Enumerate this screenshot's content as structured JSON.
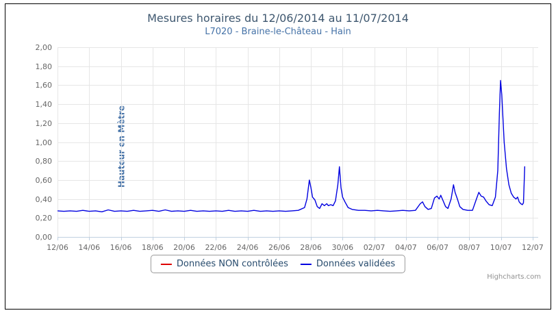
{
  "chart": {
    "title": "Mesures horaires du 12/06/2014 au 11/07/2014",
    "subtitle": "L7020 - Braine-le-Château - Hain",
    "credits": "Highcharts.com",
    "colors": {
      "title": "#3E576F",
      "subtitle": "#4572A7",
      "axis_label": "#666666",
      "legend_text": "#274B6D",
      "legend_border": "#999999",
      "frame_border": "#000000",
      "background": "#FFFFFF"
    }
  },
  "legend": {
    "items": [
      {
        "label": "Données NON contrôlées",
        "color": "#DD0000"
      },
      {
        "label": "Données validées",
        "color": "#0000E0"
      }
    ]
  },
  "chart_data": {
    "type": "line",
    "title": "Mesures horaires du 12/06/2014 au 11/07/2014",
    "subtitle": "L7020 - Braine-le-Château - Hain",
    "xlabel": "",
    "ylabel": "Hauteur en Mètre",
    "x_unit": "days since 12/06/2014 00:00",
    "xlim": [
      0,
      30.35
    ],
    "ylim": [
      0,
      2.0
    ],
    "grid": true,
    "grid_color": "#E6E6E6",
    "axis_color": "#C0D0E0",
    "legend_position": "bottom-center",
    "xticks": [
      {
        "v": 0,
        "label": "12/06"
      },
      {
        "v": 2,
        "label": "14/06"
      },
      {
        "v": 4,
        "label": "16/06"
      },
      {
        "v": 6,
        "label": "18/06"
      },
      {
        "v": 8,
        "label": "20/06"
      },
      {
        "v": 10,
        "label": "22/06"
      },
      {
        "v": 12,
        "label": "24/06"
      },
      {
        "v": 14,
        "label": "26/06"
      },
      {
        "v": 16,
        "label": "28/06"
      },
      {
        "v": 18,
        "label": "30/06"
      },
      {
        "v": 20,
        "label": "02/07"
      },
      {
        "v": 22,
        "label": "04/07"
      },
      {
        "v": 24,
        "label": "06/07"
      },
      {
        "v": 26,
        "label": "08/07"
      },
      {
        "v": 28,
        "label": "10/07"
      },
      {
        "v": 30,
        "label": "12/07"
      }
    ],
    "yticks": [
      {
        "v": 0.0,
        "label": "0,00"
      },
      {
        "v": 0.2,
        "label": "0,20"
      },
      {
        "v": 0.4,
        "label": "0,40"
      },
      {
        "v": 0.6,
        "label": "0,60"
      },
      {
        "v": 0.8,
        "label": "0,80"
      },
      {
        "v": 1.0,
        "label": "1,00"
      },
      {
        "v": 1.2,
        "label": "1,20"
      },
      {
        "v": 1.4,
        "label": "1,40"
      },
      {
        "v": 1.6,
        "label": "1,60"
      },
      {
        "v": 1.8,
        "label": "1,80"
      },
      {
        "v": 2.0,
        "label": "2,00"
      }
    ],
    "series": [
      {
        "name": "Données NON contrôlées",
        "color": "#DD0000",
        "points": []
      },
      {
        "name": "Données validées",
        "color": "#0000E0",
        "points": [
          [
            0,
            0.275
          ],
          [
            0.4,
            0.27
          ],
          [
            0.8,
            0.275
          ],
          [
            1.2,
            0.27
          ],
          [
            1.6,
            0.28
          ],
          [
            2.0,
            0.27
          ],
          [
            2.4,
            0.275
          ],
          [
            2.8,
            0.265
          ],
          [
            3.2,
            0.285
          ],
          [
            3.6,
            0.27
          ],
          [
            4.0,
            0.275
          ],
          [
            4.4,
            0.27
          ],
          [
            4.8,
            0.28
          ],
          [
            5.2,
            0.27
          ],
          [
            5.6,
            0.275
          ],
          [
            6.0,
            0.28
          ],
          [
            6.4,
            0.27
          ],
          [
            6.8,
            0.285
          ],
          [
            7.2,
            0.27
          ],
          [
            7.6,
            0.275
          ],
          [
            8.0,
            0.27
          ],
          [
            8.4,
            0.28
          ],
          [
            8.8,
            0.27
          ],
          [
            9.2,
            0.275
          ],
          [
            9.6,
            0.27
          ],
          [
            10.0,
            0.275
          ],
          [
            10.4,
            0.27
          ],
          [
            10.8,
            0.28
          ],
          [
            11.2,
            0.27
          ],
          [
            11.6,
            0.275
          ],
          [
            12.0,
            0.27
          ],
          [
            12.4,
            0.28
          ],
          [
            12.8,
            0.27
          ],
          [
            13.2,
            0.275
          ],
          [
            13.6,
            0.27
          ],
          [
            14.0,
            0.275
          ],
          [
            14.4,
            0.27
          ],
          [
            14.8,
            0.275
          ],
          [
            15.2,
            0.28
          ],
          [
            15.6,
            0.31
          ],
          [
            15.75,
            0.4
          ],
          [
            15.9,
            0.6
          ],
          [
            16.0,
            0.52
          ],
          [
            16.1,
            0.42
          ],
          [
            16.25,
            0.39
          ],
          [
            16.4,
            0.32
          ],
          [
            16.55,
            0.3
          ],
          [
            16.7,
            0.35
          ],
          [
            16.85,
            0.33
          ],
          [
            17.0,
            0.35
          ],
          [
            17.1,
            0.33
          ],
          [
            17.25,
            0.34
          ],
          [
            17.4,
            0.33
          ],
          [
            17.55,
            0.38
          ],
          [
            17.7,
            0.55
          ],
          [
            17.8,
            0.74
          ],
          [
            17.9,
            0.52
          ],
          [
            18.0,
            0.42
          ],
          [
            18.15,
            0.37
          ],
          [
            18.35,
            0.31
          ],
          [
            18.6,
            0.29
          ],
          [
            19.0,
            0.28
          ],
          [
            19.4,
            0.28
          ],
          [
            19.8,
            0.275
          ],
          [
            20.2,
            0.28
          ],
          [
            20.6,
            0.275
          ],
          [
            21.0,
            0.27
          ],
          [
            21.4,
            0.275
          ],
          [
            21.8,
            0.28
          ],
          [
            22.2,
            0.275
          ],
          [
            22.6,
            0.28
          ],
          [
            22.9,
            0.35
          ],
          [
            23.05,
            0.37
          ],
          [
            23.2,
            0.32
          ],
          [
            23.4,
            0.29
          ],
          [
            23.6,
            0.3
          ],
          [
            23.8,
            0.41
          ],
          [
            23.95,
            0.43
          ],
          [
            24.1,
            0.4
          ],
          [
            24.2,
            0.44
          ],
          [
            24.35,
            0.38
          ],
          [
            24.5,
            0.32
          ],
          [
            24.65,
            0.3
          ],
          [
            24.85,
            0.4
          ],
          [
            25.0,
            0.55
          ],
          [
            25.1,
            0.47
          ],
          [
            25.25,
            0.4
          ],
          [
            25.4,
            0.32
          ],
          [
            25.6,
            0.29
          ],
          [
            25.9,
            0.28
          ],
          [
            26.2,
            0.28
          ],
          [
            26.45,
            0.4
          ],
          [
            26.6,
            0.47
          ],
          [
            26.75,
            0.43
          ],
          [
            26.9,
            0.42
          ],
          [
            27.05,
            0.38
          ],
          [
            27.25,
            0.34
          ],
          [
            27.45,
            0.33
          ],
          [
            27.65,
            0.42
          ],
          [
            27.8,
            0.7
          ],
          [
            27.9,
            1.3
          ],
          [
            27.97,
            1.65
          ],
          [
            28.05,
            1.5
          ],
          [
            28.2,
            1.0
          ],
          [
            28.35,
            0.72
          ],
          [
            28.5,
            0.55
          ],
          [
            28.65,
            0.46
          ],
          [
            28.8,
            0.42
          ],
          [
            28.95,
            0.4
          ],
          [
            29.05,
            0.42
          ],
          [
            29.15,
            0.37
          ],
          [
            29.25,
            0.35
          ],
          [
            29.35,
            0.34
          ],
          [
            29.42,
            0.36
          ],
          [
            29.5,
            0.74
          ]
        ]
      }
    ]
  }
}
